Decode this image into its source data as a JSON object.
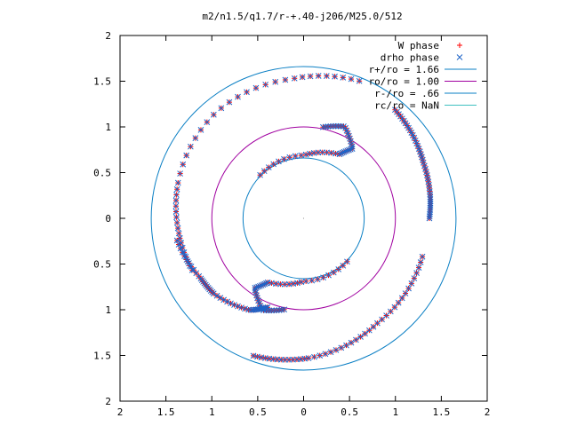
{
  "chart_data": {
    "type": "scatter",
    "title": "m2/n1.5/q1.7/r-+.40-j206/M25.0/512",
    "xlabel": "",
    "ylabel": "",
    "xlim": [
      -2,
      2
    ],
    "ylim": [
      -2,
      2
    ],
    "x_tick_values": [
      -2,
      -1.5,
      -1,
      -0.5,
      0,
      0.5,
      1,
      1.5,
      2
    ],
    "x_tick_labels": [
      "2",
      "1.5",
      "1",
      "0.5",
      "0",
      "0.5",
      "1",
      "1.5",
      "2"
    ],
    "y_tick_values": [
      2,
      1.5,
      1,
      0.5,
      0,
      -0.5,
      -1,
      -1.5,
      -2
    ],
    "y_tick_labels": [
      "2",
      "1.5",
      "1",
      "0.5",
      "0",
      "0.5",
      "1",
      "1.5",
      "2"
    ],
    "grid": false,
    "legend_position": "top-right",
    "legend": [
      {
        "label": "W phase",
        "kind": "point",
        "marker": "+",
        "color": "#ff0000"
      },
      {
        "label": "drho phase",
        "kind": "point",
        "marker": "x",
        "color": "#1e64c8"
      },
      {
        "label": "r+/ro = 1.66",
        "kind": "circle",
        "radius": 1.66,
        "color": "#0a7fc4"
      },
      {
        "label": "ro/ro = 1.00",
        "kind": "circle",
        "radius": 1.0,
        "color": "#a000a0"
      },
      {
        "label": "r-/ro = .66",
        "kind": "circle",
        "radius": 0.66,
        "color": "#0a7fc4"
      },
      {
        "label": "rc/ro = NaN",
        "kind": "circle",
        "radius": null,
        "color": "#40c0c0"
      }
    ],
    "center_point": [
      0,
      0
    ],
    "series": [
      {
        "name": "W phase",
        "marker": "+",
        "color": "#ff0000",
        "segments": [
          {
            "r": [
              1.62,
              1.53,
              1.5,
              1.42,
              1.37,
              1.34
            ],
            "theta": [
              68,
              95,
              130,
              165,
              186,
              205
            ]
          },
          {
            "r": [
              1.6,
              1.53,
              1.4,
              1.36
            ],
            "theta": [
              -110,
              -88,
              -55,
              -18
            ]
          },
          {
            "r": [
              1.4,
              1.3,
              1.28,
              1.16,
              1.05
            ],
            "theta": [
              -170,
              -150,
              -140,
              -120,
              -112
            ]
          },
          {
            "r": [
              1.55,
              1.5,
              1.44,
              1.4,
              1.37
            ],
            "theta": [
              50,
              38,
              25,
              10,
              0
            ]
          },
          {
            "r": [
              1.02,
              1.1,
              0.93,
              0.8,
              0.69,
              0.67
            ],
            "theta": [
              78,
              66,
              55,
              61,
              90,
              135
            ]
          },
          {
            "r": [
              1.02,
              1.1,
              0.93,
              0.8,
              0.69,
              0.67
            ],
            "theta": [
              -102,
              -114,
              -125,
              -119,
              -90,
              -45
            ]
          }
        ]
      },
      {
        "name": "drho phase",
        "marker": "x",
        "color": "#1e64c8",
        "segments": [
          {
            "r": [
              1.62,
              1.53,
              1.5,
              1.42,
              1.37,
              1.34
            ],
            "theta": [
              68,
              95,
              130,
              165,
              186,
              205
            ]
          },
          {
            "r": [
              1.6,
              1.53,
              1.4,
              1.36
            ],
            "theta": [
              -110,
              -88,
              -55,
              -18
            ]
          },
          {
            "r": [
              1.4,
              1.3,
              1.28,
              1.16,
              1.05
            ],
            "theta": [
              -170,
              -150,
              -140,
              -120,
              -112
            ]
          },
          {
            "r": [
              1.55,
              1.5,
              1.44,
              1.4,
              1.37
            ],
            "theta": [
              50,
              38,
              25,
              10,
              0
            ]
          },
          {
            "r": [
              1.02,
              1.1,
              0.93,
              0.8,
              0.69,
              0.67
            ],
            "theta": [
              78,
              66,
              55,
              61,
              90,
              135
            ]
          },
          {
            "r": [
              1.02,
              1.1,
              0.93,
              0.8,
              0.69,
              0.67
            ],
            "theta": [
              -102,
              -114,
              -125,
              -119,
              -90,
              -45
            ]
          }
        ]
      }
    ]
  }
}
